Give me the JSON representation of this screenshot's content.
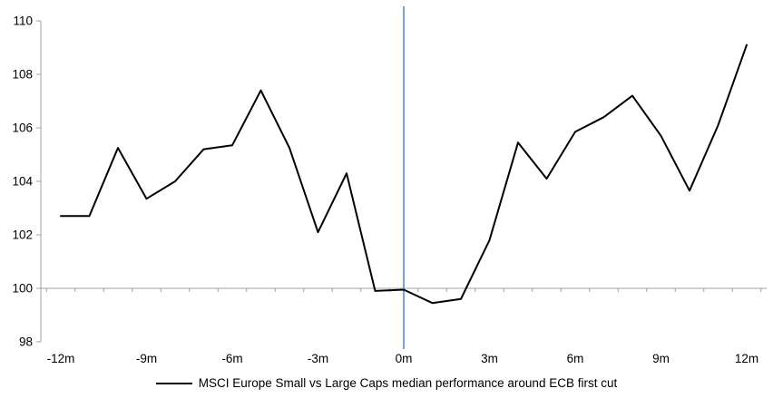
{
  "chart_data": {
    "type": "line",
    "title": "",
    "xlabel": "",
    "ylabel": "",
    "x_months": [
      -12,
      -11,
      -10,
      -9,
      -8,
      -7,
      -6,
      -5,
      -4,
      -3,
      -2,
      -1,
      0,
      1,
      2,
      3,
      4,
      5,
      6,
      7,
      8,
      9,
      10,
      11,
      12
    ],
    "series": [
      {
        "name": "MSCI Europe Small vs Large Caps median performance around ECB first cut",
        "color": "#000000",
        "values": [
          102.7,
          102.7,
          105.25,
          103.35,
          104.0,
          105.2,
          105.35,
          107.4,
          105.25,
          102.1,
          104.3,
          99.9,
          99.95,
          99.45,
          99.6,
          101.8,
          105.45,
          104.1,
          105.85,
          106.4,
          107.2,
          105.7,
          103.65,
          106.1,
          109.1
        ]
      }
    ],
    "ylim": [
      98,
      110
    ],
    "y_ticks": [
      98,
      100,
      102,
      104,
      106,
      108,
      110
    ],
    "x_ticks": [
      {
        "month": -12,
        "label": "-12m"
      },
      {
        "month": -9,
        "label": "-9m"
      },
      {
        "month": -6,
        "label": "-6m"
      },
      {
        "month": -3,
        "label": "-3m"
      },
      {
        "month": 0,
        "label": "0m"
      },
      {
        "month": 3,
        "label": "3m"
      },
      {
        "month": 6,
        "label": "6m"
      },
      {
        "month": 9,
        "label": "9m"
      },
      {
        "month": 12,
        "label": "12m"
      }
    ],
    "baseline_value": 100,
    "event_line": {
      "month": 0,
      "color": "#74A4D4"
    },
    "axis_color": "#A0A0A0",
    "grid": "baseline-only",
    "legend_position": "bottom"
  }
}
